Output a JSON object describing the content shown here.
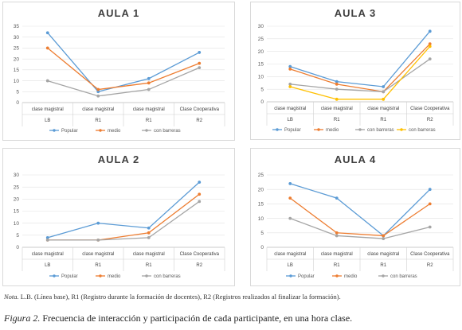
{
  "chart_data": [
    {
      "type": "line",
      "title": "AULA 1",
      "categories": [
        "clase magistral",
        "clase magistral",
        "clase magistral",
        "Clase Cooperativa"
      ],
      "phases": [
        "LB",
        "R1",
        "R1",
        "R2"
      ],
      "ylim": [
        0,
        35
      ],
      "yticks": [
        0,
        5,
        10,
        15,
        20,
        25,
        30,
        35
      ],
      "grid": true,
      "legend": "bottom",
      "series": [
        {
          "name": "Popular",
          "color": "#5b9bd5",
          "values": [
            32,
            5,
            11,
            23
          ]
        },
        {
          "name": "medio",
          "color": "#ed7d31",
          "values": [
            25,
            6,
            9,
            18
          ]
        },
        {
          "name": "con barreras",
          "color": "#a5a5a5",
          "values": [
            10,
            3,
            6,
            16
          ]
        }
      ]
    },
    {
      "type": "line",
      "title": "AULA 3",
      "categories": [
        "clase magistral",
        "clase magistral",
        "clase magistral",
        "Clase Cooperativa"
      ],
      "phases": [
        "LB",
        "R1",
        "R1",
        "R2"
      ],
      "ylim": [
        0,
        30
      ],
      "yticks": [
        0,
        5,
        10,
        15,
        20,
        25,
        30
      ],
      "grid": true,
      "legend": "bottom",
      "series": [
        {
          "name": "Popular",
          "color": "#5b9bd5",
          "values": [
            14,
            8,
            6,
            28
          ]
        },
        {
          "name": "medio",
          "color": "#ed7d31",
          "values": [
            13,
            7,
            4,
            23
          ]
        },
        {
          "name": "con barreras",
          "color": "#a5a5a5",
          "values": [
            7,
            5,
            4,
            17
          ]
        },
        {
          "name": "con barreras",
          "color": "#ffc000",
          "values": [
            6,
            1,
            1,
            22
          ]
        }
      ]
    },
    {
      "type": "line",
      "title": "AULA 2",
      "categories": [
        "clase magistral",
        "clase magistral",
        "clase magistral",
        "Clase Cooperativa"
      ],
      "phases": [
        "LB",
        "R1",
        "R1",
        "R2"
      ],
      "ylim": [
        0,
        30
      ],
      "yticks": [
        0,
        5,
        10,
        15,
        20,
        25,
        30
      ],
      "grid": true,
      "legend": "bottom",
      "series": [
        {
          "name": "Popular",
          "color": "#5b9bd5",
          "values": [
            4,
            10,
            8,
            27
          ]
        },
        {
          "name": "medio",
          "color": "#ed7d31",
          "values": [
            3,
            3,
            6,
            22
          ]
        },
        {
          "name": "con barreras",
          "color": "#a5a5a5",
          "values": [
            3,
            3,
            4,
            19
          ]
        }
      ]
    },
    {
      "type": "line",
      "title": "AULA 4",
      "categories": [
        "clase magistral",
        "clase magistral",
        "clase magistral",
        "Clase Cooperativa"
      ],
      "phases": [
        "LB",
        "R1",
        "R1",
        "R2"
      ],
      "ylim": [
        0,
        25
      ],
      "yticks": [
        0,
        5,
        10,
        15,
        20,
        25
      ],
      "grid": true,
      "legend": "bottom",
      "series": [
        {
          "name": "Popular",
          "color": "#5b9bd5",
          "values": [
            22,
            17,
            4,
            20
          ]
        },
        {
          "name": "medio",
          "color": "#ed7d31",
          "values": [
            17,
            5,
            4,
            15
          ]
        },
        {
          "name": "con barreras",
          "color": "#a5a5a5",
          "values": [
            10,
            4,
            3,
            7
          ]
        }
      ]
    }
  ],
  "note": {
    "prefix": "Nota.",
    "text": " L.B. (Línea base), R1 (Registro durante la formación de docentes), R2 (Registros realizados al finalizar la formación)."
  },
  "caption": {
    "prefix": "Figura 2.",
    "text": " Frecuencia de interacción y participación de cada participante, en una hora clase."
  }
}
